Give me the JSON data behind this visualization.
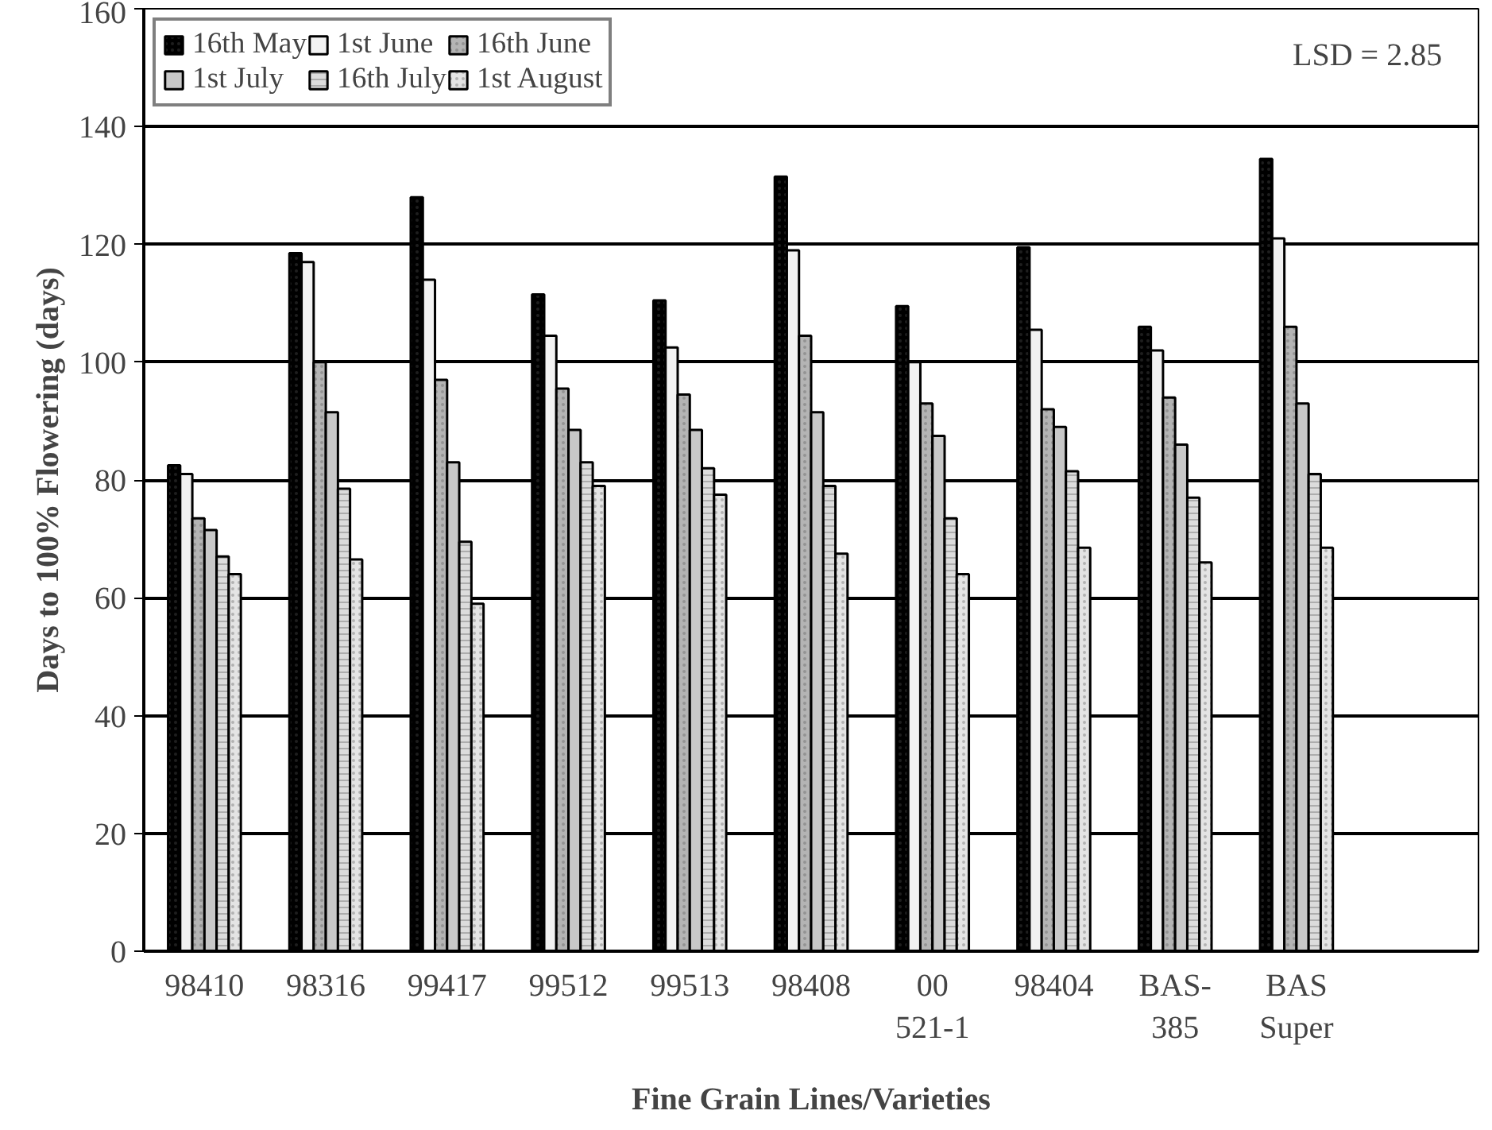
{
  "chart_data": {
    "type": "bar",
    "xlabel": "Fine Grain Lines/Varieties",
    "ylabel": "Days to 100% Flowering (days)",
    "categories": [
      "98410",
      "98316",
      "99417",
      "99512",
      "99513",
      "98408",
      "00 521-1",
      "98404",
      "BAS-385",
      "BAS Super",
      null
    ],
    "series": [
      {
        "name": "16th May",
        "color": "#000000",
        "values": [
          82.5,
          118.5,
          128,
          111.5,
          110.5,
          131.5,
          109.5,
          119.5,
          106,
          134.5,
          null
        ]
      },
      {
        "name": "1st June",
        "color": "#f2f2f2",
        "values": [
          81,
          117,
          114,
          104.5,
          102.5,
          119,
          100,
          105.5,
          102,
          121,
          null
        ]
      },
      {
        "name": "16th June",
        "color": "#b4b4b4",
        "values": [
          73.5,
          100,
          97,
          95.5,
          94.5,
          104.5,
          93,
          92,
          94,
          106,
          null
        ]
      },
      {
        "name": "1st July",
        "color": "#c8c8c8",
        "values": [
          71.5,
          91.5,
          83,
          88.5,
          88.5,
          91.5,
          87.5,
          89,
          86,
          93,
          null
        ]
      },
      {
        "name": "16th July",
        "color": "#dcdcdc",
        "values": [
          67,
          78.5,
          69.5,
          83,
          82,
          79,
          73.5,
          81.5,
          77,
          81,
          null
        ]
      },
      {
        "name": "1st August",
        "color": "#e4e4e4",
        "values": [
          64,
          66.5,
          59,
          79,
          77.5,
          67.5,
          64,
          68.5,
          66,
          68.5,
          null
        ]
      }
    ],
    "ylim": [
      0,
      160
    ],
    "yticks": [
      0,
      20,
      40,
      60,
      80,
      100,
      120,
      140,
      160
    ],
    "grid": "y",
    "legend": "top left",
    "annotations": [
      "LSD = 2.85"
    ]
  }
}
